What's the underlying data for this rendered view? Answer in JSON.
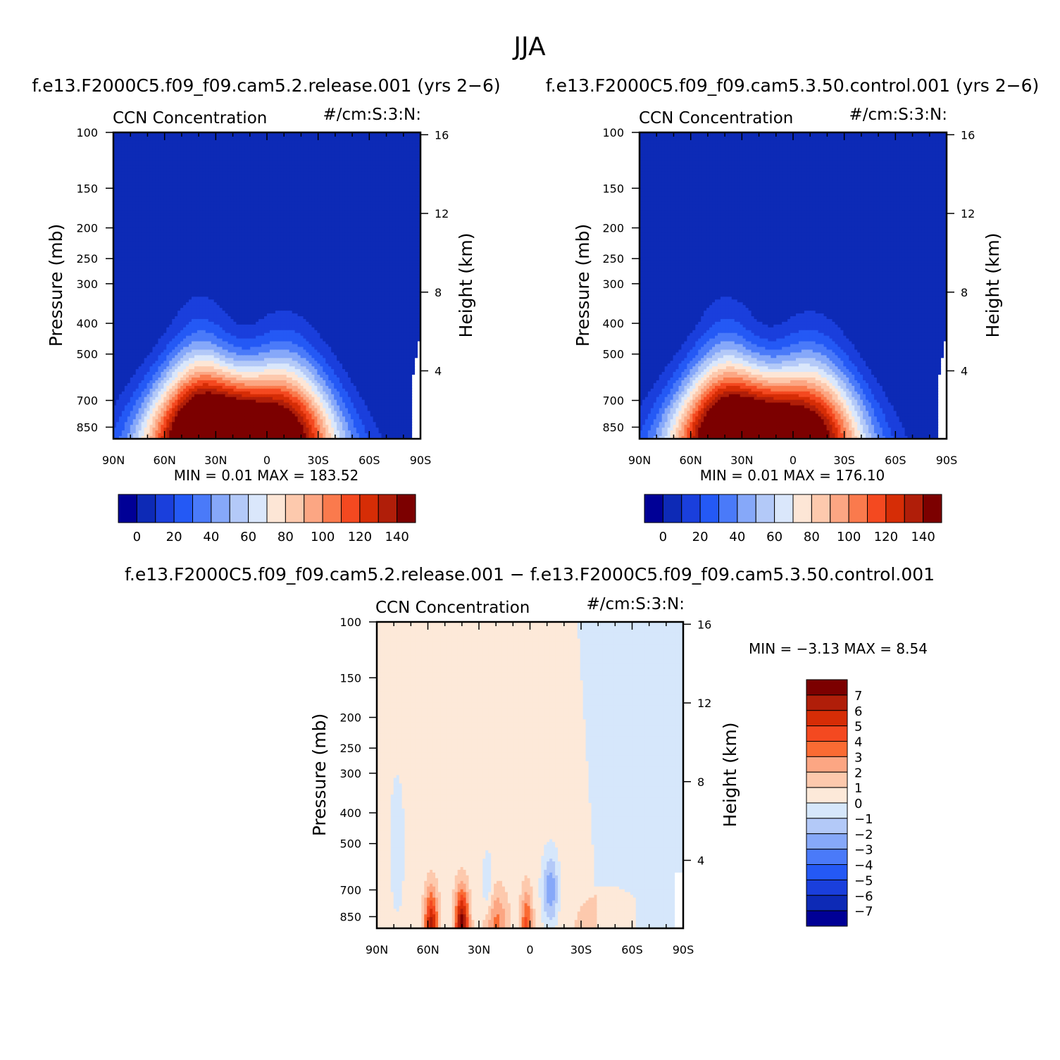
{
  "figure": {
    "title": "JJA",
    "diff_title": "f.e13.F2000C5.f09_f09.cam5.2.release.001 − f.e13.F2000C5.f09_f09.cam5.3.50.control.001"
  },
  "colors": {
    "abs_palette": [
      "#000096",
      "#0d2ab6",
      "#1a3fdc",
      "#2459f5",
      "#4a7af9",
      "#86a8f9",
      "#b3c9f8",
      "#dae7fb",
      "#fde6d6",
      "#fdc9ad",
      "#fca683",
      "#fa7a4d",
      "#f44920",
      "#d62d06",
      "#b01e09",
      "#7c0000"
    ],
    "diff_palette": [
      "#000096",
      "#0d2ab6",
      "#1a3fdc",
      "#2459f5",
      "#4a7af9",
      "#86a8f9",
      "#b3c9f8",
      "#d6e7fb",
      "#fde9d9",
      "#fdc9ad",
      "#fca683",
      "#fa6b33",
      "#f44920",
      "#d62d06",
      "#b01e09",
      "#7c0000"
    ]
  },
  "chart_data": [
    {
      "type": "heatmap",
      "title": "f.e13.F2000C5.f09_f09.cam5.2.release.001 (yrs 2−6)",
      "left_label": "CCN Concentration",
      "right_label": "#/cm:S:3:N:",
      "xlabel": "",
      "ylabel": "Pressure (mb)",
      "y2label": "Height (km)",
      "x_ticks": [
        "90N",
        "60N",
        "30N",
        "0",
        "30S",
        "60S",
        "90S"
      ],
      "xlim": [
        90,
        -90
      ],
      "y_ticks": [
        "100",
        "150",
        "200",
        "250",
        "300",
        "400",
        "500",
        "700",
        "850"
      ],
      "y_scale": "log",
      "ylim": [
        100,
        925
      ],
      "y2_ticks": [
        "16",
        "12",
        "8",
        "4"
      ],
      "colorbar_labels": [
        "0",
        "20",
        "40",
        "60",
        "80",
        "100",
        "120",
        "140"
      ],
      "colorbar_levels": [
        -10,
        0,
        10,
        20,
        30,
        40,
        50,
        60,
        70,
        80,
        90,
        100,
        110,
        120,
        130,
        140
      ],
      "min_text": "MIN =    0.01   MAX =  183.52",
      "max_value": 183.52,
      "min_value": 0.01,
      "plumes": [
        {
          "lat": 38,
          "peak": 183.52
        },
        {
          "lat": -8,
          "peak": 150
        }
      ]
    },
    {
      "type": "heatmap",
      "title": "f.e13.F2000C5.f09_f09.cam5.3.50.control.001 (yrs 2−6)",
      "left_label": "CCN Concentration",
      "right_label": "#/cm:S:3:N:",
      "xlabel": "",
      "ylabel": "Pressure (mb)",
      "y2label": "Height (km)",
      "x_ticks": [
        "90N",
        "60N",
        "30N",
        "0",
        "30S",
        "60S",
        "90S"
      ],
      "xlim": [
        90,
        -90
      ],
      "y_ticks": [
        "100",
        "150",
        "200",
        "250",
        "300",
        "400",
        "500",
        "700",
        "850"
      ],
      "y_scale": "log",
      "ylim": [
        100,
        925
      ],
      "y2_ticks": [
        "16",
        "12",
        "8",
        "4"
      ],
      "colorbar_labels": [
        "0",
        "20",
        "40",
        "60",
        "80",
        "100",
        "120",
        "140"
      ],
      "colorbar_levels": [
        -10,
        0,
        10,
        20,
        30,
        40,
        50,
        60,
        70,
        80,
        90,
        100,
        110,
        120,
        130,
        140
      ],
      "min_text": "MIN =    0.01   MAX =  176.10",
      "max_value": 176.1,
      "min_value": 0.01,
      "plumes": [
        {
          "lat": 38,
          "peak": 176.1
        },
        {
          "lat": -8,
          "peak": 145
        }
      ]
    },
    {
      "type": "heatmap",
      "title": "",
      "left_label": "CCN Concentration",
      "right_label": "#/cm:S:3:N:",
      "xlabel": "",
      "ylabel": "Pressure (mb)",
      "y2label": "Height (km)",
      "x_ticks": [
        "90N",
        "60N",
        "30N",
        "0",
        "30S",
        "60S",
        "90S"
      ],
      "xlim": [
        90,
        -90
      ],
      "y_ticks": [
        "100",
        "150",
        "200",
        "250",
        "300",
        "400",
        "500",
        "700",
        "850"
      ],
      "y_scale": "log",
      "ylim": [
        100,
        925
      ],
      "y2_ticks": [
        "16",
        "12",
        "8",
        "4"
      ],
      "colorbar_labels": [
        "7",
        "6",
        "5",
        "4",
        "3",
        "2",
        "1",
        "0",
        "−1",
        "−2",
        "−3",
        "−4",
        "−5",
        "−6",
        "−7"
      ],
      "colorbar_levels": [
        -7,
        -6,
        -5,
        -4,
        -3,
        -2,
        -1,
        0,
        1,
        2,
        3,
        4,
        5,
        6,
        7
      ],
      "min_text": "MIN =   −3.13   MAX =    8.54",
      "max_value": 8.54,
      "min_value": -3.13
    }
  ]
}
